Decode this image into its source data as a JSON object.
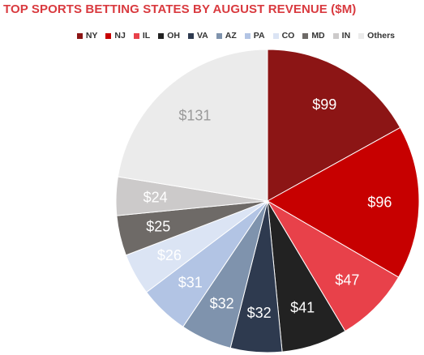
{
  "title": "TOP SPORTS BETTING STATES BY AUGUST REVENUE ($M)",
  "chart_data": {
    "type": "pie",
    "title": "TOP SPORTS BETTING STATES BY AUGUST REVENUE ($M)",
    "legend_position": "top-right",
    "value_prefix": "$",
    "categories": [
      "NY",
      "NJ",
      "IL",
      "OH",
      "VA",
      "AZ",
      "PA",
      "CO",
      "MD",
      "IN",
      "Others"
    ],
    "values": [
      99,
      96,
      47,
      41,
      32,
      32,
      31,
      26,
      25,
      24,
      131
    ],
    "colors": [
      "#8c1515",
      "#c70000",
      "#e8414a",
      "#222222",
      "#2e3a4f",
      "#7f93ad",
      "#b2c4e4",
      "#dbe4f4",
      "#6e6a67",
      "#cccaca",
      "#ebebeb"
    ],
    "label_colors": [
      "#ffffff",
      "#ffffff",
      "#ffffff",
      "#ffffff",
      "#ffffff",
      "#ffffff",
      "#ffffff",
      "#ffffff",
      "#ffffff",
      "#ffffff",
      "#9a9a9a"
    ]
  }
}
